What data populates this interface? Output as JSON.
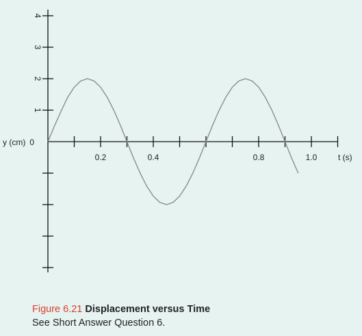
{
  "chart_data": {
    "type": "line",
    "xlabel": "t (s)",
    "ylabel": "y (cm)",
    "x_tick_labels": [
      "0.2",
      "0.4",
      "0.8",
      "1.0"
    ],
    "y_tick_labels": [
      "0",
      "1",
      "2",
      "3",
      "4"
    ],
    "xlim": [
      0,
      1.1
    ],
    "ylim": [
      -4,
      4
    ],
    "series": [
      {
        "x": [
          0,
          0.025,
          0.05,
          0.075,
          0.1,
          0.125,
          0.15,
          0.175,
          0.2,
          0.225,
          0.25,
          0.275,
          0.3,
          0.325,
          0.35,
          0.375,
          0.4,
          0.425,
          0.45,
          0.475,
          0.5,
          0.525,
          0.55,
          0.575,
          0.6,
          0.625,
          0.65,
          0.675,
          0.7,
          0.725,
          0.75,
          0.775,
          0.8,
          0.825,
          0.85,
          0.875,
          0.9,
          0.925,
          0.95
        ],
        "y": [
          0,
          0.5,
          0.97,
          1.41,
          1.73,
          1.93,
          2,
          1.93,
          1.73,
          1.41,
          1,
          0.52,
          0,
          -0.52,
          -1,
          -1.41,
          -1.73,
          -1.93,
          -2,
          -1.93,
          -1.73,
          -1.41,
          -1,
          -0.52,
          0,
          0.52,
          1,
          1.41,
          1.73,
          1.93,
          2,
          1.93,
          1.73,
          1.41,
          1,
          0.52,
          0,
          -0.52,
          -1
        ]
      }
    ],
    "color": "#8c8c8c"
  },
  "caption": {
    "figure_number": "Figure 6.21",
    "figure_title": "Displacement versus Time",
    "note": "See Short Answer Question 6."
  }
}
